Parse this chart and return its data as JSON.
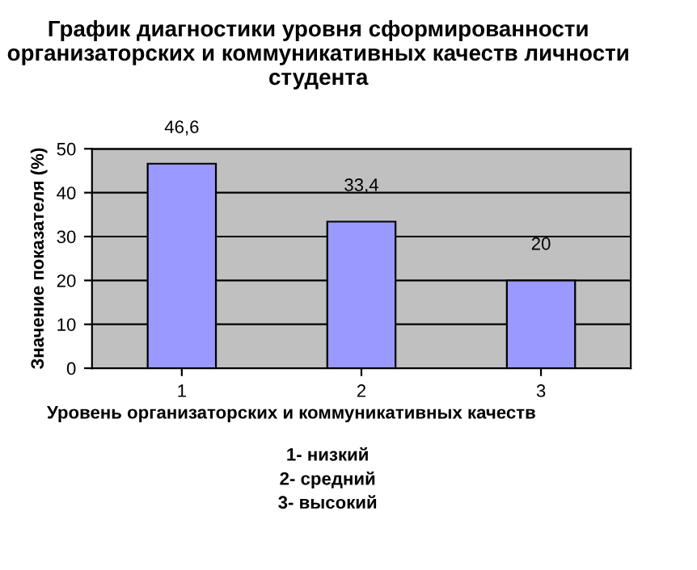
{
  "chart_data": {
    "type": "bar",
    "title": "График диагностики уровня сформированности организаторских и коммуникативных качеств личности студента",
    "xlabel": "Уровень организаторских и коммуникативных качеств",
    "ylabel": "Значение показателя (%)",
    "categories": [
      "1",
      "2",
      "3"
    ],
    "values": [
      46.6,
      33.4,
      20
    ],
    "value_labels": [
      "46,6",
      "33,4",
      "20"
    ],
    "color": "#9999ff",
    "ylim": [
      0,
      50
    ],
    "yticks": [
      0,
      10,
      20,
      30,
      40,
      50
    ],
    "grid": "y",
    "annotations": [
      "1- низкий",
      "2- средний",
      "3- высокий"
    ]
  }
}
